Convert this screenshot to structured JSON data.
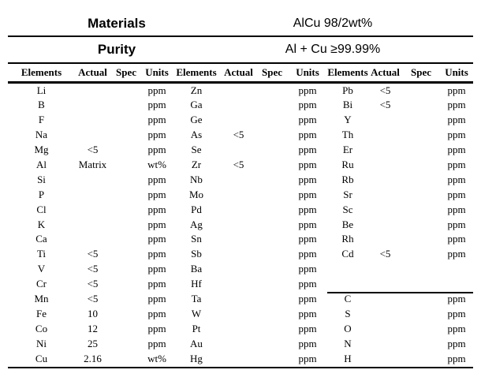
{
  "document": {
    "materials_label": "Materials",
    "materials_value": "AlCu 98/2wt%",
    "purity_label": "Purity",
    "purity_value": "Al + Cu ≥99.99%"
  },
  "table": {
    "column_headers": [
      "Elements",
      "Actual",
      "Spec",
      "Units"
    ],
    "groups": [
      {
        "name": "group-1",
        "rows": [
          [
            "Li",
            "",
            "",
            "ppm"
          ],
          [
            "B",
            "",
            "",
            "ppm"
          ],
          [
            "F",
            "",
            "",
            "ppm"
          ],
          [
            "Na",
            "",
            "",
            "ppm"
          ],
          [
            "Mg",
            "<5",
            "",
            "ppm"
          ],
          [
            "Al",
            "Matrix",
            "",
            "wt%"
          ],
          [
            "Si",
            "",
            "",
            "ppm"
          ],
          [
            "P",
            "",
            "",
            "ppm"
          ],
          [
            "Cl",
            "",
            "",
            "ppm"
          ],
          [
            "K",
            "",
            "",
            "ppm"
          ],
          [
            "Ca",
            "",
            "",
            "ppm"
          ],
          [
            "Ti",
            "<5",
            "",
            "ppm"
          ],
          [
            "V",
            "<5",
            "",
            "ppm"
          ],
          [
            "Cr",
            "<5",
            "",
            "ppm"
          ],
          [
            "Mn",
            "<5",
            "",
            "ppm"
          ],
          [
            "Fe",
            "10",
            "",
            "ppm"
          ],
          [
            "Co",
            "12",
            "",
            "ppm"
          ],
          [
            "Ni",
            "25",
            "",
            "ppm"
          ],
          [
            "Cu",
            "2.16",
            "",
            "wt%"
          ]
        ]
      },
      {
        "name": "group-2",
        "rows": [
          [
            "Zn",
            "",
            "",
            "ppm"
          ],
          [
            "Ga",
            "",
            "",
            "ppm"
          ],
          [
            "Ge",
            "",
            "",
            "ppm"
          ],
          [
            "As",
            "<5",
            "",
            "ppm"
          ],
          [
            "Se",
            "",
            "",
            "ppm"
          ],
          [
            "Zr",
            "<5",
            "",
            "ppm"
          ],
          [
            "Nb",
            "",
            "",
            "ppm"
          ],
          [
            "Mo",
            "",
            "",
            "ppm"
          ],
          [
            "Pd",
            "",
            "",
            "ppm"
          ],
          [
            "Ag",
            "",
            "",
            "ppm"
          ],
          [
            "Sn",
            "",
            "",
            "ppm"
          ],
          [
            "Sb",
            "",
            "",
            "ppm"
          ],
          [
            "Ba",
            "",
            "",
            "ppm"
          ],
          [
            "Hf",
            "",
            "",
            "ppm"
          ],
          [
            "Ta",
            "",
            "",
            "ppm"
          ],
          [
            "W",
            "",
            "",
            "ppm"
          ],
          [
            "Pt",
            "",
            "",
            "ppm"
          ],
          [
            "Au",
            "",
            "",
            "ppm"
          ],
          [
            "Hg",
            "",
            "",
            "ppm"
          ]
        ]
      },
      {
        "name": "group-3",
        "separator_before_row": 15,
        "rows": [
          [
            "Pb",
            "<5",
            "",
            "ppm"
          ],
          [
            "Bi",
            "<5",
            "",
            "ppm"
          ],
          [
            "Y",
            "",
            "",
            "ppm"
          ],
          [
            "Th",
            "",
            "",
            "ppm"
          ],
          [
            "Er",
            "",
            "",
            "ppm"
          ],
          [
            "Ru",
            "",
            "",
            "ppm"
          ],
          [
            "Rb",
            "",
            "",
            "ppm"
          ],
          [
            "Sr",
            "",
            "",
            "ppm"
          ],
          [
            "Sc",
            "",
            "",
            "ppm"
          ],
          [
            "Be",
            "",
            "",
            "ppm"
          ],
          [
            "Rh",
            "",
            "",
            "ppm"
          ],
          [
            "Cd",
            "<5",
            "",
            "ppm"
          ],
          [
            "",
            "",
            "",
            ""
          ],
          [
            "",
            "",
            "",
            ""
          ],
          [
            "C",
            "",
            "",
            "ppm"
          ],
          [
            "S",
            "",
            "",
            "ppm"
          ],
          [
            "O",
            "",
            "",
            "ppm"
          ],
          [
            "N",
            "",
            "",
            "ppm"
          ],
          [
            "H",
            "",
            "",
            "ppm"
          ]
        ]
      }
    ]
  },
  "colors": {
    "text": "#000000",
    "rule": "#000000",
    "background": "#ffffff"
  }
}
